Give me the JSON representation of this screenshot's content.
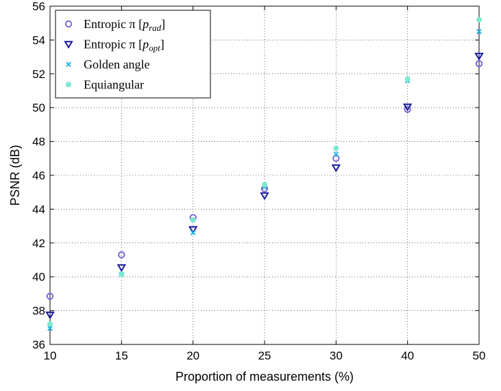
{
  "chart_data": {
    "type": "scatter",
    "xlabel": "Proportion of measurements (%)",
    "ylabel": "PSNR (dB)",
    "ylim": [
      36,
      56
    ],
    "y_ticks": [
      36,
      38,
      40,
      42,
      44,
      46,
      48,
      50,
      52,
      54,
      56
    ],
    "x_categories": [
      "10",
      "15",
      "20",
      "25",
      "30",
      "40",
      "50"
    ],
    "grid": true,
    "legend_position": "top-left",
    "series": [
      {
        "name": "Entropic π [p_rad]",
        "legend_main": "Entropic π ",
        "legend_sub": "rad",
        "marker": "circle",
        "color": "#7b68d8",
        "values": [
          38.85,
          41.3,
          43.5,
          45.2,
          47.0,
          49.9,
          52.6
        ]
      },
      {
        "name": "Entropic π [p_opt]",
        "legend_main": "Entropic π ",
        "legend_sub": "opt",
        "marker": "triangle-down",
        "color": "#1a1aa0",
        "values": [
          37.75,
          40.55,
          42.8,
          44.8,
          46.45,
          50.05,
          53.05
        ]
      },
      {
        "name": "Golden angle",
        "legend_main": "Golden angle",
        "legend_sub": "",
        "marker": "x",
        "color": "#22b8e8",
        "values": [
          36.95,
          40.15,
          42.6,
          45.3,
          47.25,
          51.6,
          54.5
        ]
      },
      {
        "name": "Equiangular",
        "legend_main": "Equiangular",
        "legend_sub": "",
        "marker": "dot",
        "color": "#7de8d0",
        "values": [
          37.2,
          40.15,
          43.35,
          45.45,
          47.6,
          51.7,
          55.2
        ]
      }
    ]
  }
}
